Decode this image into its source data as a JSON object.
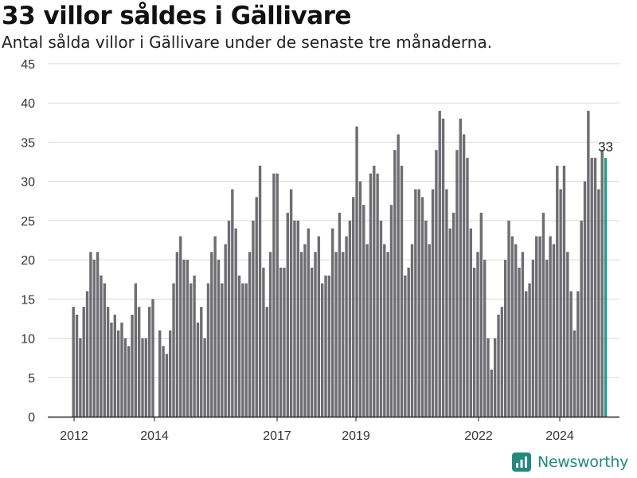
{
  "header": {
    "title": "33 villor såldes i Gällivare",
    "subtitle": "Antal sålda villor i Gällivare under de senaste tre månaderna."
  },
  "brand": {
    "name": "Newsworthy",
    "color": "#23897f"
  },
  "colors": {
    "bar": "#6e6d72",
    "highlight": "#1f9c8b",
    "grid": "#d9d9d9",
    "axis": "#222222"
  },
  "chart_data": {
    "type": "bar",
    "title": "33 villor såldes i Gällivare",
    "subtitle": "Antal sålda villor i Gällivare under de senaste tre månaderna.",
    "xlabel": "",
    "ylabel": "",
    "ylim": [
      0,
      45
    ],
    "yticks": [
      0,
      5,
      10,
      15,
      20,
      25,
      30,
      35,
      40,
      45
    ],
    "xticks": [
      "2012",
      "2014",
      "2017",
      "2019",
      "2022",
      "2024"
    ],
    "grid": true,
    "highlight_label": "33",
    "values": [
      14,
      13,
      10,
      14,
      16,
      21,
      20,
      21,
      18,
      17,
      14,
      12,
      13,
      11,
      12,
      10,
      9,
      13,
      17,
      14,
      10,
      10,
      14,
      15,
      0,
      11,
      9,
      8,
      11,
      17,
      21,
      23,
      20,
      20,
      17,
      18,
      12,
      14,
      10,
      17,
      21,
      23,
      20,
      17,
      22,
      25,
      29,
      24,
      18,
      17,
      17,
      21,
      25,
      28,
      32,
      19,
      14,
      21,
      31,
      31,
      19,
      19,
      26,
      29,
      25,
      25,
      21,
      22,
      24,
      19,
      21,
      23,
      17,
      18,
      18,
      24,
      21,
      26,
      21,
      23,
      25,
      28,
      37,
      30,
      27,
      22,
      31,
      32,
      31,
      25,
      22,
      21,
      27,
      34,
      36,
      32,
      18,
      19,
      22,
      29,
      29,
      28,
      25,
      22,
      29,
      34,
      39,
      38,
      29,
      24,
      26,
      34,
      38,
      36,
      33,
      24,
      19,
      21,
      26,
      20,
      10,
      6,
      10,
      13,
      14,
      20,
      25,
      23,
      22,
      19,
      21,
      16,
      17,
      20,
      23,
      23,
      26,
      20,
      23,
      22,
      32,
      29,
      32,
      21,
      16,
      11,
      16,
      25,
      30,
      39,
      33,
      33,
      29,
      34,
      33
    ]
  }
}
